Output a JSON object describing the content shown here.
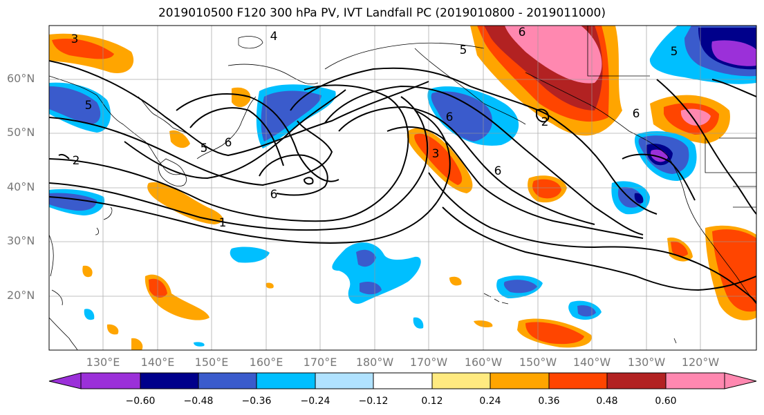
{
  "title": "2019010500 F120 300 hPa PV, IVT Landfall PC (2019010800 - 2019011000)",
  "lat_labels": [
    "60°N",
    "50°N",
    "40°N",
    "30°N",
    "20°N"
  ],
  "lon_labels": [
    "130°E",
    "140°E",
    "150°E",
    "160°E",
    "170°E",
    "180°W",
    "170°W",
    "160°W",
    "150°W",
    "140°W",
    "130°W",
    "120°W"
  ],
  "colorbar": {
    "colors": [
      "#9b30d9",
      "#00008b",
      "#3a5bcc",
      "#00bfff",
      "#b0e2ff",
      "#ffffff",
      "#ffea80",
      "#ffa500",
      "#ff4500",
      "#b22222",
      "#ff88b0"
    ],
    "tick_labels": [
      "−0.60",
      "−0.48",
      "−0.36",
      "−0.24",
      "−0.12",
      "0.12",
      "0.24",
      "0.36",
      "0.48",
      "0.60"
    ]
  },
  "contour_labels": [
    "3",
    "4",
    "6",
    "5",
    "5",
    "2",
    "6",
    "5",
    "6",
    "6",
    "6",
    "3",
    "2",
    "5",
    "6",
    "1"
  ]
}
